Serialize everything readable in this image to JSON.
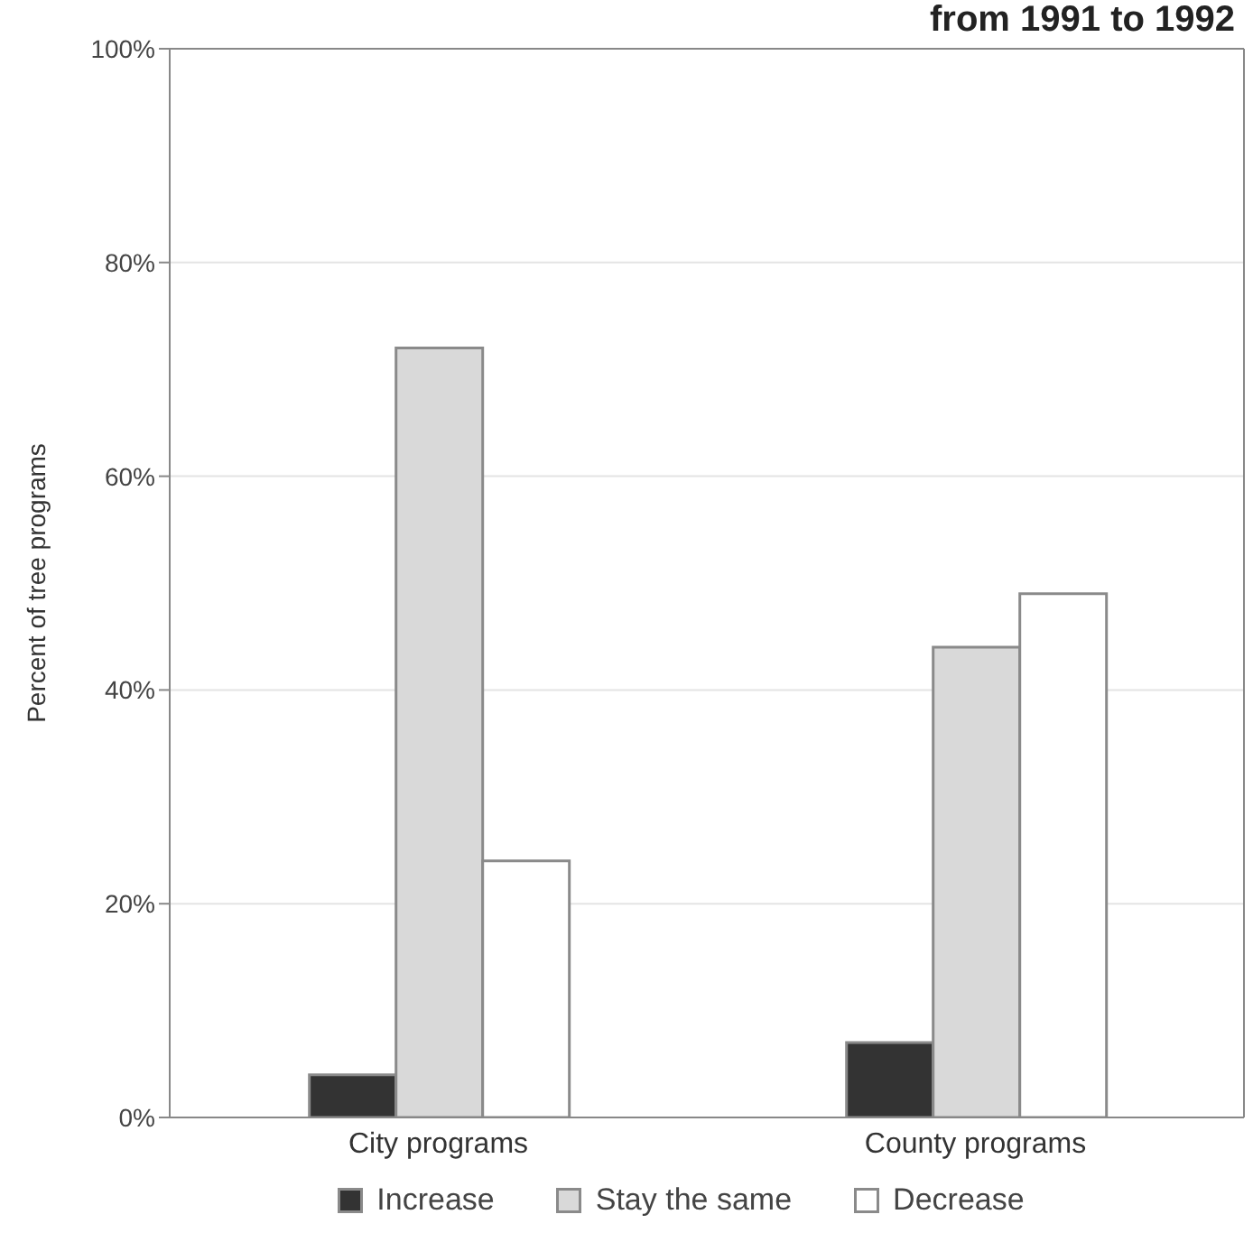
{
  "chart_data": {
    "type": "bar",
    "title": "from 1991 to 1992",
    "ylabel": "Percent of tree programs",
    "categories": [
      "City programs",
      "County programs"
    ],
    "series": [
      {
        "name": "Increase",
        "color": "#333333",
        "values": [
          4,
          7
        ]
      },
      {
        "name": "Stay the same",
        "color": "#d9d9d9",
        "values": [
          72,
          44
        ]
      },
      {
        "name": "Decrease",
        "color": "#ffffff",
        "values": [
          24,
          49
        ]
      }
    ],
    "ylim": [
      0,
      100
    ],
    "yticks": [
      {
        "value": 0,
        "label": "0%"
      },
      {
        "value": 20,
        "label": "20%"
      },
      {
        "value": 40,
        "label": "40%"
      },
      {
        "value": 60,
        "label": "60%"
      },
      {
        "value": 80,
        "label": "80%"
      },
      {
        "value": 100,
        "label": "100%"
      }
    ],
    "grid": "y",
    "legend": "bottom"
  }
}
